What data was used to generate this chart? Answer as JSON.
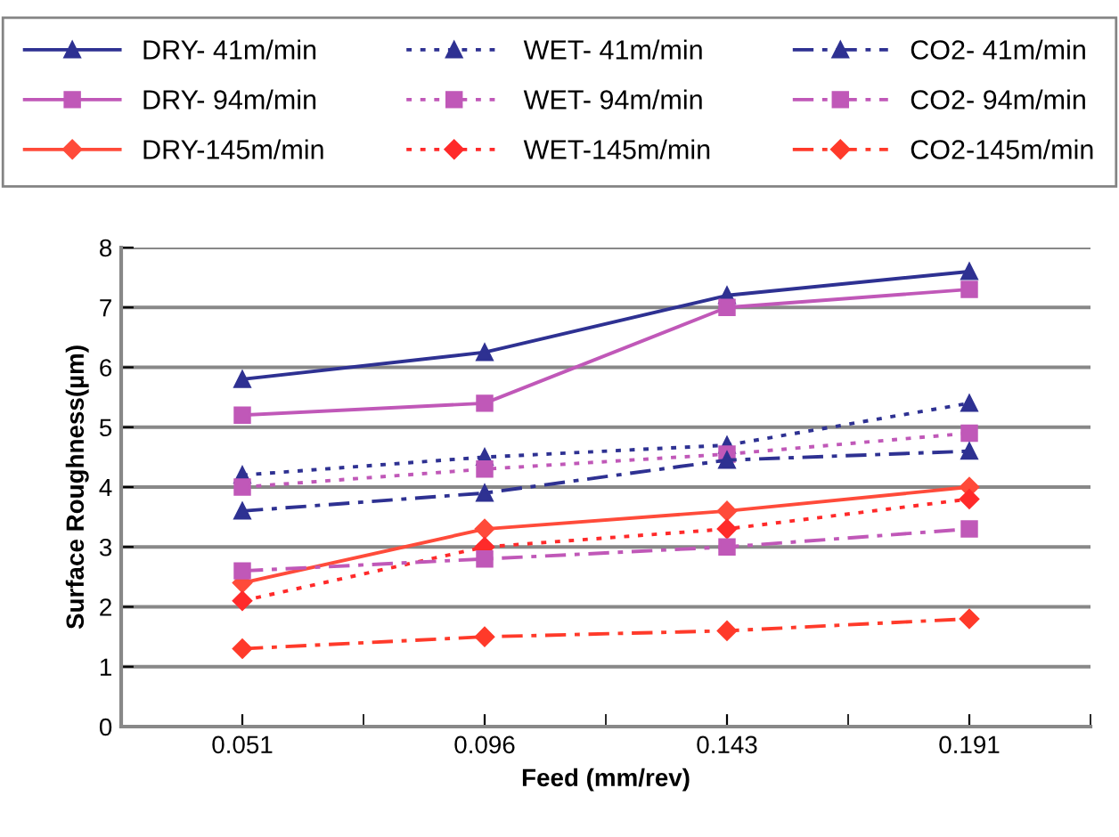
{
  "chart_data": {
    "type": "line",
    "xlabel": "Feed (mm/rev)",
    "ylabel": "Surface Roughness(µm)",
    "categories": [
      "0.051",
      "0.096",
      "0.143",
      "0.191"
    ],
    "series": [
      {
        "name": "DRY- 41m/min",
        "color": "#2e3192",
        "marker": "triangle",
        "line_style": "solid",
        "values": [
          5.8,
          6.25,
          7.2,
          7.6
        ]
      },
      {
        "name": "DRY- 94m/min",
        "color": "#c058b8",
        "marker": "square",
        "line_style": "solid",
        "values": [
          5.2,
          5.4,
          7.0,
          7.3
        ]
      },
      {
        "name": "DRY-145m/min",
        "color": "#ff4b3a",
        "marker": "diamond",
        "line_style": "solid",
        "values": [
          2.4,
          3.3,
          3.6,
          4.0
        ]
      },
      {
        "name": "WET- 41m/min",
        "color": "#2e3192",
        "marker": "triangle",
        "line_style": "dotted",
        "values": [
          4.2,
          4.5,
          4.7,
          5.4
        ]
      },
      {
        "name": "WET- 94m/min",
        "color": "#c058b8",
        "marker": "square",
        "line_style": "dotted",
        "values": [
          4.0,
          4.3,
          4.55,
          4.9
        ]
      },
      {
        "name": "WET-145m/min",
        "color": "#ff2a2a",
        "marker": "diamond",
        "line_style": "dotted",
        "values": [
          2.1,
          3.0,
          3.3,
          3.8
        ]
      },
      {
        "name": "CO2- 41m/min",
        "color": "#2e3192",
        "marker": "triangle",
        "line_style": "dashdot",
        "values": [
          3.6,
          3.9,
          4.45,
          4.6
        ]
      },
      {
        "name": "CO2- 94m/min",
        "color": "#c058b8",
        "marker": "square",
        "line_style": "dashdot",
        "values": [
          2.6,
          2.8,
          3.0,
          3.3
        ]
      },
      {
        "name": "CO2-145m/min",
        "color": "#ff3a2a",
        "marker": "diamond",
        "line_style": "dashdot",
        "values": [
          1.3,
          1.5,
          1.6,
          1.8
        ]
      }
    ],
    "ylim": [
      0,
      8
    ],
    "yticks": [
      0,
      1,
      2,
      3,
      4,
      5,
      6,
      7,
      8
    ],
    "grid": "y",
    "legend": "top"
  }
}
